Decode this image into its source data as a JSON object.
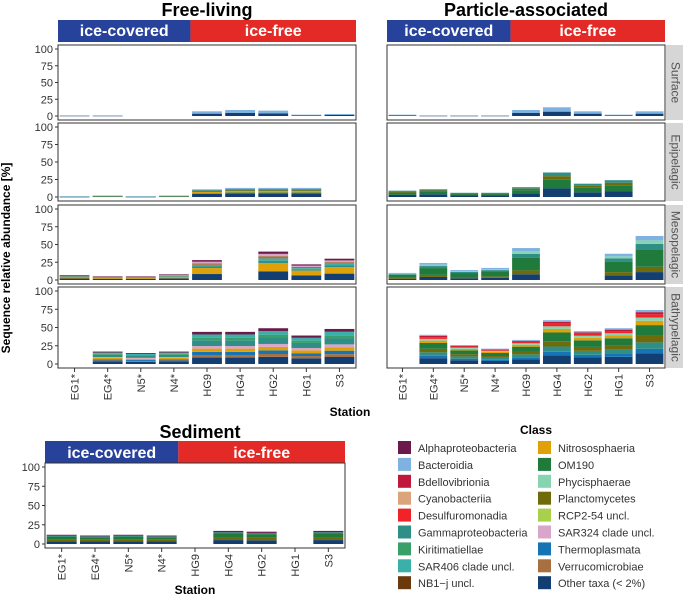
{
  "chart_data": {
    "type": "bar",
    "subtype": "stacked faceted bar",
    "ylabel": "Sequence relative abundance [%]",
    "xlabel": "Station",
    "ylim": [
      0,
      100
    ],
    "yticks": [
      "0",
      "25",
      "50",
      "75",
      "100"
    ],
    "stations": [
      "EG1*",
      "EG4*",
      "N5*",
      "N4*",
      "HG9",
      "HG4",
      "HG2",
      "HG1",
      "S3"
    ],
    "cover_labels": {
      "covered": "ice-covered",
      "free": "ice-free"
    },
    "panels": [
      {
        "name": "Free-living",
        "depths": [
          {
            "name": "Surface",
            "totals": [
              1,
              1,
              0,
              0,
              7,
              9,
              8,
              2,
              3
            ]
          },
          {
            "name": "Epipelagic",
            "totals": [
              1,
              2,
              1,
              2,
              11,
              13,
              13,
              13,
              0
            ]
          },
          {
            "name": "Mesopelagic",
            "totals": [
              7,
              5,
              5,
              8,
              28,
              0,
              40,
              22,
              30
            ]
          },
          {
            "name": "Bathypelagic",
            "totals": [
              0,
              17,
              15,
              17,
              44,
              44,
              49,
              39,
              48
            ]
          }
        ]
      },
      {
        "name": "Particle-associated",
        "depths": [
          {
            "name": "Surface",
            "totals": [
              2,
              1,
              1,
              1,
              9,
              13,
              7,
              2,
              7
            ]
          },
          {
            "name": "Epipelagic",
            "totals": [
              9,
              11,
              6,
              6,
              14,
              35,
              19,
              24,
              0
            ]
          },
          {
            "name": "Mesopelagic",
            "totals": [
              10,
              24,
              14,
              17,
              45,
              0,
              0,
              37,
              62
            ]
          },
          {
            "name": "Bathypelagic",
            "totals": [
              0,
              40,
              26,
              21,
              33,
              60,
              45,
              49,
              74
            ]
          }
        ]
      },
      {
        "name": "Sediment",
        "depths": [
          {
            "name": "Sediment",
            "totals": [
              12,
              11,
              12,
              11,
              0,
              17,
              16,
              0,
              17
            ]
          }
        ]
      }
    ],
    "legend_title": "Class",
    "legend": [
      {
        "name": "Alphaproteobacteria",
        "color": "#6b1a4a"
      },
      {
        "name": "Nitrososphaeria",
        "color": "#e0a007"
      },
      {
        "name": "Bacteroidia",
        "color": "#7fb2e0"
      },
      {
        "name": "OM190",
        "color": "#1f7a3c"
      },
      {
        "name": "Bdellovibrionia",
        "color": "#c0183a"
      },
      {
        "name": "Phycisphaerae",
        "color": "#86d4b0"
      },
      {
        "name": "Cyanobacteriia",
        "color": "#dca47a"
      },
      {
        "name": "Planctomycetes",
        "color": "#6f6a0a"
      },
      {
        "name": "Desulfuromonadia",
        "color": "#f02428"
      },
      {
        "name": "RCP2-54 uncl.",
        "color": "#a8d04a"
      },
      {
        "name": "Gammaproteobacteria",
        "color": "#2f8e86"
      },
      {
        "name": "SAR324 clade uncl.",
        "color": "#d8a6c8"
      },
      {
        "name": "Kiritimatiellae",
        "color": "#3aa06a"
      },
      {
        "name": "Thermoplasmata",
        "color": "#1674b4"
      },
      {
        "name": "SAR406 clade uncl.",
        "color": "#3bb0a8"
      },
      {
        "name": "Verrucomicrobiae",
        "color": "#a87040"
      },
      {
        "name": "NB1−j uncl.",
        "color": "#6a3a0c"
      },
      {
        "name": "Other taxa (< 2%)",
        "color": "#123e72"
      }
    ],
    "colors": {
      "ice_covered": "#27429b",
      "ice_free": "#e42a26",
      "strip": "#d6d6d6"
    }
  }
}
